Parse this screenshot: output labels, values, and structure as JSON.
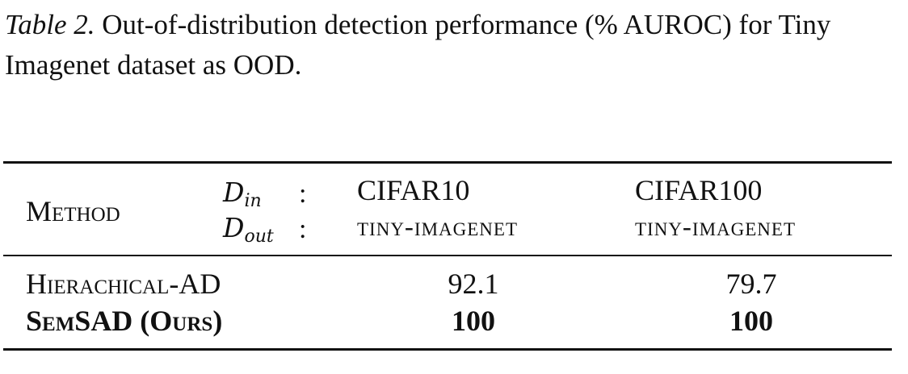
{
  "caption": {
    "label": "Table 2.",
    "text": " Out-of-distribution detection performance (% AUROC) for Tiny Imagenet dataset as OOD."
  },
  "table": {
    "header": {
      "method": "Method",
      "d_in_symbol": "D",
      "d_in_sub": "in",
      "d_out_symbol": "D",
      "d_out_sub": "out",
      "colon": ":",
      "columns": [
        {
          "in": "CIFAR10",
          "out": "tiny-imagenet"
        },
        {
          "in": "CIFAR100",
          "out": "tiny-imagenet"
        }
      ]
    },
    "rows": [
      {
        "method": "Hierachical-AD",
        "values": [
          "92.1",
          "79.7"
        ],
        "bold": false
      },
      {
        "method": "SemSAD (Ours)",
        "values": [
          "100",
          "100"
        ],
        "bold": true
      }
    ]
  }
}
